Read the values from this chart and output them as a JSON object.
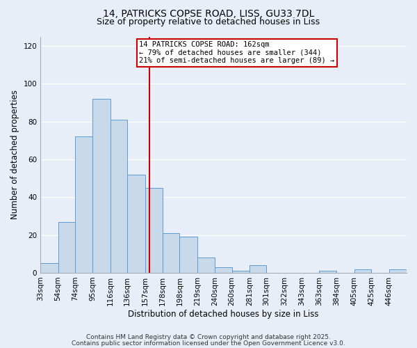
{
  "title_line1": "14, PATRICKS COPSE ROAD, LISS, GU33 7DL",
  "title_line2": "Size of property relative to detached houses in Liss",
  "xlabel": "Distribution of detached houses by size in Liss",
  "ylabel": "Number of detached properties",
  "bin_labels": [
    "33sqm",
    "54sqm",
    "74sqm",
    "95sqm",
    "116sqm",
    "136sqm",
    "157sqm",
    "178sqm",
    "198sqm",
    "219sqm",
    "240sqm",
    "260sqm",
    "281sqm",
    "301sqm",
    "322sqm",
    "343sqm",
    "363sqm",
    "384sqm",
    "405sqm",
    "425sqm",
    "446sqm"
  ],
  "bin_edges": [
    33,
    54,
    74,
    95,
    116,
    136,
    157,
    178,
    198,
    219,
    240,
    260,
    281,
    301,
    322,
    343,
    363,
    384,
    405,
    425,
    446
  ],
  "bar_heights": [
    5,
    27,
    72,
    92,
    81,
    52,
    45,
    21,
    19,
    8,
    3,
    1,
    4,
    0,
    0,
    0,
    1,
    0,
    2,
    0,
    2
  ],
  "bar_color": "#c8d9ea",
  "bar_edge_color": "#5b9bd5",
  "vline_x": 162,
  "vline_color": "#cc0000",
  "ylim": [
    0,
    125
  ],
  "yticks": [
    0,
    20,
    40,
    60,
    80,
    100,
    120
  ],
  "annotation_title": "14 PATRICKS COPSE ROAD: 162sqm",
  "annotation_line2": "← 79% of detached houses are smaller (344)",
  "annotation_line3": "21% of semi-detached houses are larger (89) →",
  "annotation_box_color": "#ffffff",
  "annotation_box_edge": "#cc0000",
  "footer_line1": "Contains HM Land Registry data © Crown copyright and database right 2025.",
  "footer_line2": "Contains public sector information licensed under the Open Government Licence v3.0.",
  "background_color": "#e8eef8",
  "plot_bg_color": "#e8eef8",
  "grid_color": "#ffffff",
  "title_fontsize": 10,
  "subtitle_fontsize": 9,
  "axis_label_fontsize": 8.5,
  "tick_fontsize": 7.5,
  "footer_fontsize": 6.5,
  "annotation_fontsize": 7.5
}
